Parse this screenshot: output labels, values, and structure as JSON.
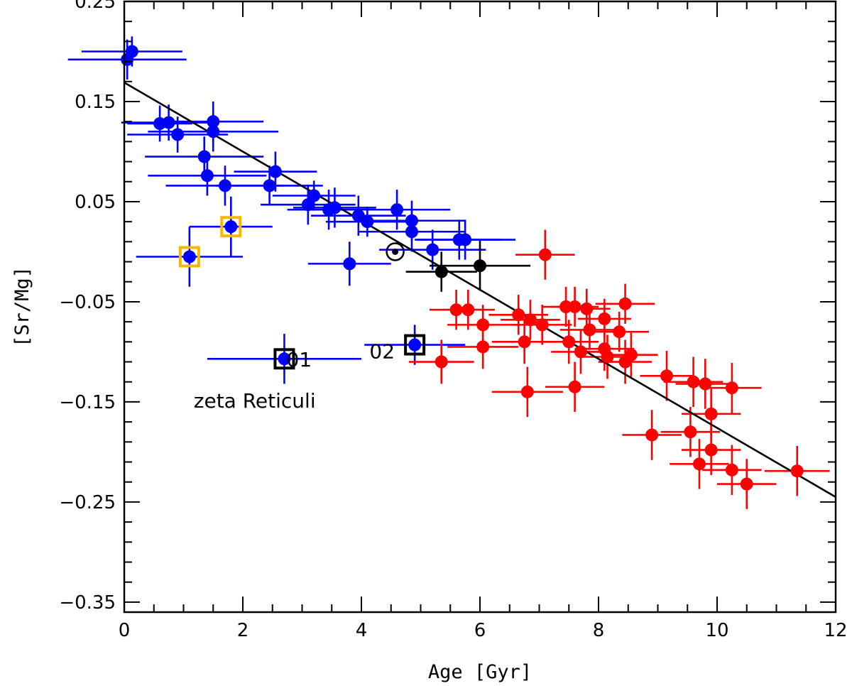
{
  "chart_data": {
    "type": "scatter",
    "title": "",
    "xlabel": "Age [Gyr]",
    "ylabel": "[Sr/Mg]",
    "xlim": [
      0,
      12
    ],
    "ylim": [
      -0.36,
      0.25
    ],
    "x_ticks": [
      0,
      2,
      4,
      6,
      8,
      10,
      12
    ],
    "x_tick_labels": [
      "0",
      "2",
      "4",
      "6",
      "8",
      "10",
      "12"
    ],
    "y_ticks": [
      -0.35,
      -0.25,
      -0.15,
      -0.05,
      0.05,
      0.15,
      0.25
    ],
    "y_tick_labels": [
      "−0.35",
      "−0.25",
      "−0.15",
      "−0.05",
      "0.05",
      "0.15",
      "0.25"
    ],
    "grid": false,
    "legend": "none",
    "fit_line": {
      "x": [
        0,
        12
      ],
      "y": [
        0.169,
        -0.245
      ],
      "color": "#000000"
    },
    "annotations": [
      {
        "text": "01",
        "x": 2.95,
        "y": -0.1075
      },
      {
        "text": "zeta Reticuli",
        "x": 2.2,
        "y": -0.1485
      },
      {
        "text": "02",
        "x": 4.35,
        "y": -0.0995
      }
    ],
    "sun": {
      "x": 4.57,
      "y": 0.0
    },
    "series": [
      {
        "color": "#0000ff",
        "points": [
          {
            "x": 0.05,
            "y": 0.192,
            "xerr": 1.0,
            "yerr": 0.02
          },
          {
            "x": 0.13,
            "y": 0.2,
            "xerr": 0.85,
            "yerr": 0.015
          },
          {
            "x": 0.6,
            "y": 0.128,
            "xerr": 0.55,
            "yerr": 0.018
          },
          {
            "x": 0.75,
            "y": 0.129,
            "xerr": 0.8,
            "yerr": 0.018
          },
          {
            "x": 0.9,
            "y": 0.117,
            "xerr": 0.85,
            "yerr": 0.018
          },
          {
            "x": 1.5,
            "y": 0.13,
            "xerr": 0.85,
            "yerr": 0.02
          },
          {
            "x": 1.5,
            "y": 0.12,
            "xerr": 1.1,
            "yerr": 0.02
          },
          {
            "x": 1.35,
            "y": 0.095,
            "xerr": 1.0,
            "yerr": 0.02
          },
          {
            "x": 1.4,
            "y": 0.076,
            "xerr": 1.0,
            "yerr": 0.02
          },
          {
            "x": 1.7,
            "y": 0.066,
            "xerr": 1.0,
            "yerr": 0.02
          },
          {
            "x": 2.45,
            "y": 0.066,
            "xerr": 0.9,
            "yerr": 0.02
          },
          {
            "x": 2.55,
            "y": 0.08,
            "xerr": 0.7,
            "yerr": 0.02
          },
          {
            "x": 3.1,
            "y": 0.047,
            "xerr": 0.8,
            "yerr": 0.02
          },
          {
            "x": 3.2,
            "y": 0.056,
            "xerr": 0.7,
            "yerr": 0.015
          },
          {
            "x": 3.45,
            "y": 0.042,
            "xerr": 0.7,
            "yerr": 0.02
          },
          {
            "x": 3.55,
            "y": 0.044,
            "xerr": 0.7,
            "yerr": 0.02
          },
          {
            "x": 3.95,
            "y": 0.036,
            "xerr": 0.8,
            "yerr": 0.02
          },
          {
            "x": 4.1,
            "y": 0.03,
            "xerr": 0.7,
            "yerr": 0.015
          },
          {
            "x": 4.6,
            "y": 0.042,
            "xerr": 0.9,
            "yerr": 0.02
          },
          {
            "x": 4.85,
            "y": 0.031,
            "xerr": 0.9,
            "yerr": 0.02
          },
          {
            "x": 4.85,
            "y": 0.02,
            "xerr": 0.9,
            "yerr": 0.02
          },
          {
            "x": 5.2,
            "y": 0.002,
            "xerr": 0.9,
            "yerr": 0.02
          },
          {
            "x": 5.65,
            "y": 0.012,
            "xerr": 0.7,
            "yerr": 0.02
          },
          {
            "x": 5.75,
            "y": 0.012,
            "xerr": 0.85,
            "yerr": 0.02
          },
          {
            "x": 3.8,
            "y": -0.012,
            "xerr": 0.7,
            "yerr": 0.022
          },
          {
            "x": 1.1,
            "y": -0.005,
            "xerr": 0.9,
            "yerr": 0.03
          },
          {
            "x": 1.8,
            "y": 0.025,
            "xerr": 0.7,
            "yerr": 0.03
          },
          {
            "x": 2.7,
            "y": -0.107,
            "xerr": 1.3,
            "yerr": 0.025
          },
          {
            "x": 4.9,
            "y": -0.093,
            "xerr": 0.85,
            "yerr": 0.02
          }
        ]
      },
      {
        "color": "#ff0000",
        "points": [
          {
            "x": 7.1,
            "y": -0.003,
            "xerr": 0.5,
            "yerr": 0.025
          },
          {
            "x": 5.6,
            "y": -0.058,
            "xerr": 0.45,
            "yerr": 0.02
          },
          {
            "x": 5.8,
            "y": -0.058,
            "xerr": 0.45,
            "yerr": 0.02
          },
          {
            "x": 6.05,
            "y": -0.073,
            "xerr": 0.6,
            "yerr": 0.02
          },
          {
            "x": 6.05,
            "y": -0.095,
            "xerr": 0.6,
            "yerr": 0.022
          },
          {
            "x": 5.35,
            "y": -0.11,
            "xerr": 0.55,
            "yerr": 0.022
          },
          {
            "x": 6.65,
            "y": -0.063,
            "xerr": 0.5,
            "yerr": 0.02
          },
          {
            "x": 6.85,
            "y": -0.068,
            "xerr": 0.5,
            "yerr": 0.02
          },
          {
            "x": 7.05,
            "y": -0.073,
            "xerr": 0.5,
            "yerr": 0.02
          },
          {
            "x": 6.75,
            "y": -0.09,
            "xerr": 0.55,
            "yerr": 0.022
          },
          {
            "x": 6.8,
            "y": -0.14,
            "xerr": 0.6,
            "yerr": 0.025
          },
          {
            "x": 7.45,
            "y": -0.055,
            "xerr": 0.4,
            "yerr": 0.02
          },
          {
            "x": 7.6,
            "y": -0.055,
            "xerr": 0.4,
            "yerr": 0.02
          },
          {
            "x": 7.8,
            "y": -0.057,
            "xerr": 0.4,
            "yerr": 0.02
          },
          {
            "x": 8.45,
            "y": -0.052,
            "xerr": 0.5,
            "yerr": 0.02
          },
          {
            "x": 8.1,
            "y": -0.067,
            "xerr": 0.45,
            "yerr": 0.02
          },
          {
            "x": 7.5,
            "y": -0.09,
            "xerr": 0.5,
            "yerr": 0.022
          },
          {
            "x": 7.85,
            "y": -0.078,
            "xerr": 0.5,
            "yerr": 0.02
          },
          {
            "x": 8.35,
            "y": -0.08,
            "xerr": 0.5,
            "yerr": 0.02
          },
          {
            "x": 7.7,
            "y": -0.1,
            "xerr": 0.5,
            "yerr": 0.022
          },
          {
            "x": 8.1,
            "y": -0.097,
            "xerr": 0.5,
            "yerr": 0.022
          },
          {
            "x": 8.15,
            "y": -0.105,
            "xerr": 0.5,
            "yerr": 0.022
          },
          {
            "x": 8.45,
            "y": -0.11,
            "xerr": 0.45,
            "yerr": 0.022
          },
          {
            "x": 8.55,
            "y": -0.103,
            "xerr": 0.45,
            "yerr": 0.022
          },
          {
            "x": 7.6,
            "y": -0.135,
            "xerr": 0.5,
            "yerr": 0.025
          },
          {
            "x": 9.15,
            "y": -0.124,
            "xerr": 0.45,
            "yerr": 0.025
          },
          {
            "x": 9.6,
            "y": -0.13,
            "xerr": 0.5,
            "yerr": 0.025
          },
          {
            "x": 9.8,
            "y": -0.132,
            "xerr": 0.5,
            "yerr": 0.025
          },
          {
            "x": 10.25,
            "y": -0.136,
            "xerr": 0.5,
            "yerr": 0.025
          },
          {
            "x": 9.9,
            "y": -0.162,
            "xerr": 0.5,
            "yerr": 0.025
          },
          {
            "x": 8.9,
            "y": -0.183,
            "xerr": 0.5,
            "yerr": 0.025
          },
          {
            "x": 9.55,
            "y": -0.18,
            "xerr": 0.5,
            "yerr": 0.025
          },
          {
            "x": 9.9,
            "y": -0.198,
            "xerr": 0.5,
            "yerr": 0.025
          },
          {
            "x": 9.7,
            "y": -0.212,
            "xerr": 0.5,
            "yerr": 0.025
          },
          {
            "x": 10.25,
            "y": -0.218,
            "xerr": 0.5,
            "yerr": 0.025
          },
          {
            "x": 10.5,
            "y": -0.232,
            "xerr": 0.5,
            "yerr": 0.025
          },
          {
            "x": 11.35,
            "y": -0.219,
            "xerr": 0.55,
            "yerr": 0.025
          }
        ]
      },
      {
        "color": "#000000",
        "points": [
          {
            "x": 5.35,
            "y": -0.02,
            "xerr": 0.6,
            "yerr": 0.02
          },
          {
            "x": 6.0,
            "y": -0.014,
            "xerr": 0.85,
            "yerr": 0.025
          }
        ]
      }
    ],
    "highlight_boxes": [
      {
        "x": 1.1,
        "y": -0.005,
        "color": "#f5b800"
      },
      {
        "x": 1.8,
        "y": 0.025,
        "color": "#f5b800"
      },
      {
        "x": 2.7,
        "y": -0.107,
        "color": "#000000"
      },
      {
        "x": 4.9,
        "y": -0.093,
        "color": "#000000"
      }
    ]
  }
}
